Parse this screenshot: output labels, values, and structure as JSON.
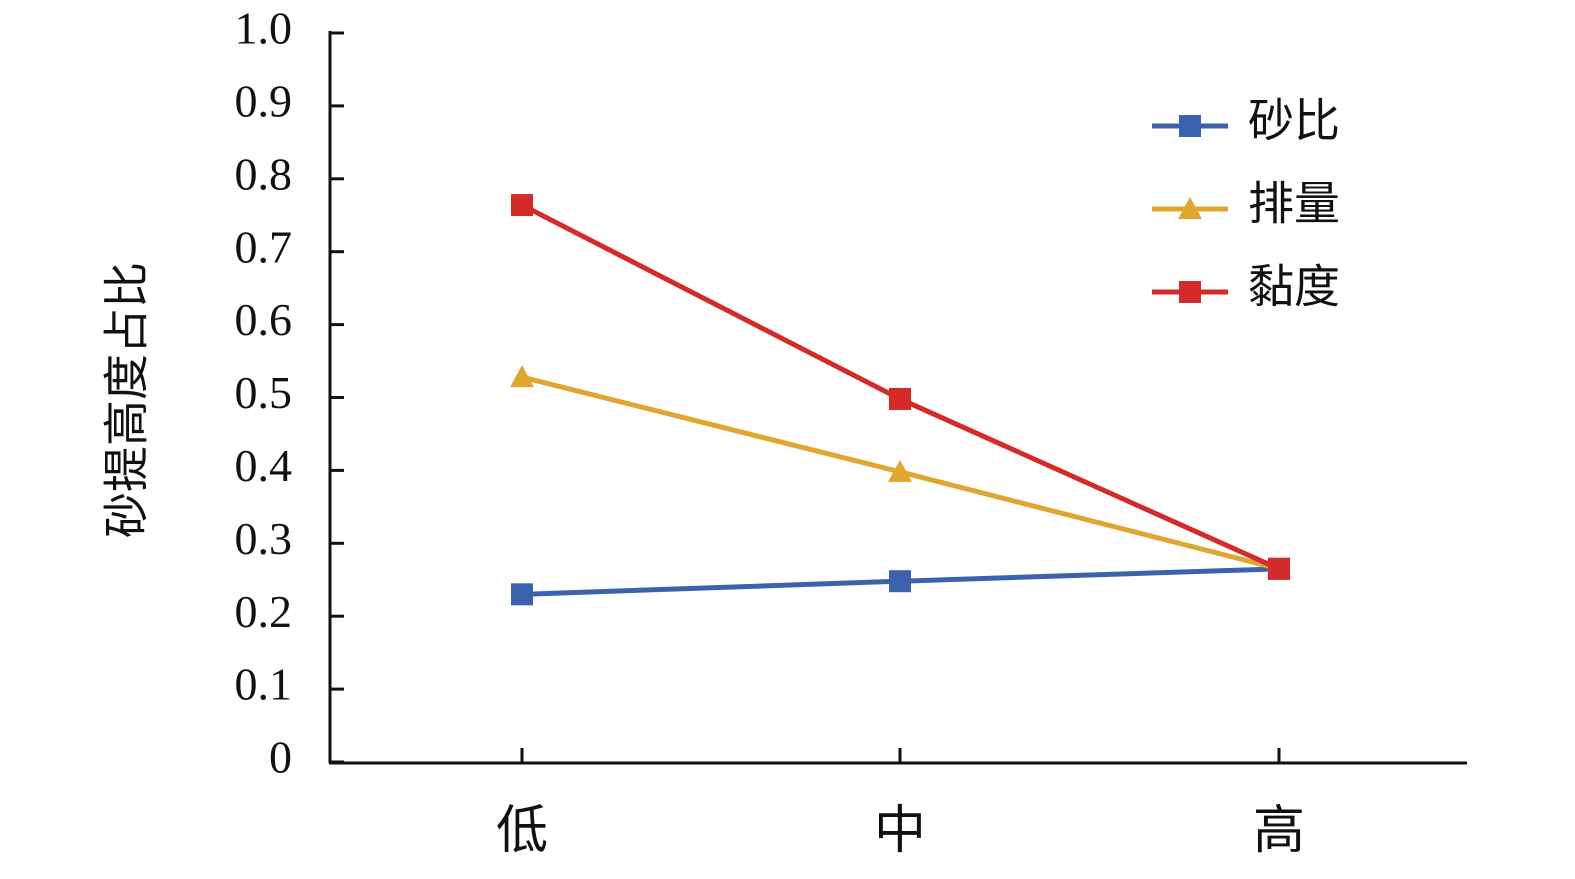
{
  "chart_data": {
    "type": "line",
    "y_label": "砂提高度占比",
    "categories": [
      "低",
      "中",
      "高"
    ],
    "series": [
      {
        "name": "砂比",
        "color": "#3a62ad",
        "marker": "square",
        "values": [
          0.23,
          0.248,
          0.265
        ]
      },
      {
        "name": "排量",
        "color": "#e0a630",
        "marker": "triangle",
        "values": [
          0.528,
          0.398,
          0.265
        ]
      },
      {
        "name": "黏度",
        "color": "#d42a2a",
        "marker": "square",
        "values": [
          0.764,
          0.498,
          0.265
        ]
      }
    ],
    "ylim": [
      0,
      1
    ],
    "yticks": [
      0,
      0.1,
      0.2,
      0.3,
      0.4,
      0.5,
      0.6,
      0.7,
      0.8,
      0.9,
      {
        "value": 1,
        "label": "1.0"
      }
    ],
    "grid": false,
    "legend": "upper-right"
  }
}
